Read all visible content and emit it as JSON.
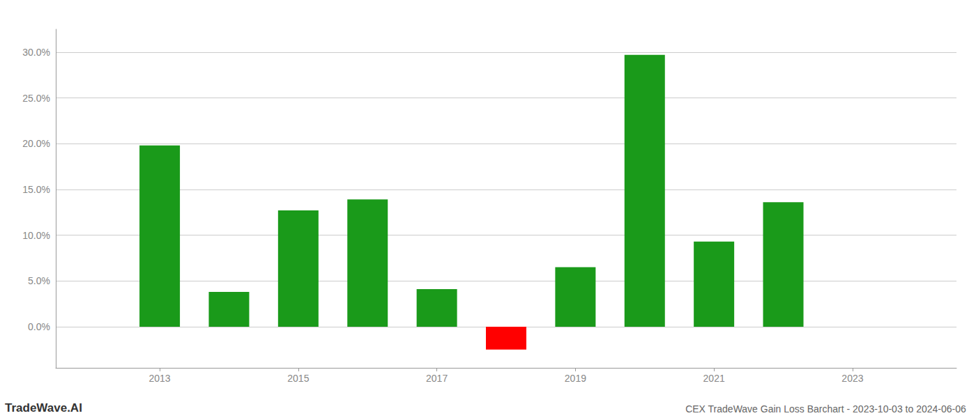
{
  "chart_data": {
    "type": "bar",
    "title": "CEX TradeWave Gain Loss Barchart - 2023-10-03 to 2024-06-06",
    "annotations": [
      "TradeWave.AI"
    ],
    "x": [
      2013,
      2014,
      2015,
      2016,
      2017,
      2018,
      2019,
      2020,
      2021,
      2022
    ],
    "values": [
      0.198,
      0.038,
      0.127,
      0.139,
      0.041,
      -0.025,
      0.065,
      0.297,
      0.093,
      0.136
    ],
    "colors": [
      "#1a9a1a",
      "#1a9a1a",
      "#1a9a1a",
      "#1a9a1a",
      "#1a9a1a",
      "#ff0000",
      "#1a9a1a",
      "#1a9a1a",
      "#1a9a1a",
      "#1a9a1a"
    ],
    "xlim": [
      2011.5,
      2024.5
    ],
    "xticks": [
      2013,
      2015,
      2017,
      2019,
      2021,
      2023
    ],
    "ylim": [
      -0.045,
      0.325
    ],
    "yticks": [
      {
        "value": 0.0,
        "label": "0.0%"
      },
      {
        "value": 0.05,
        "label": "5.0%"
      },
      {
        "value": 0.1,
        "label": "10.0%"
      },
      {
        "value": 0.15,
        "label": "15.0%"
      },
      {
        "value": 0.2,
        "label": "20.0%"
      },
      {
        "value": 0.25,
        "label": "25.0%"
      },
      {
        "value": 0.3,
        "label": "30.0%"
      }
    ],
    "grid": true
  }
}
